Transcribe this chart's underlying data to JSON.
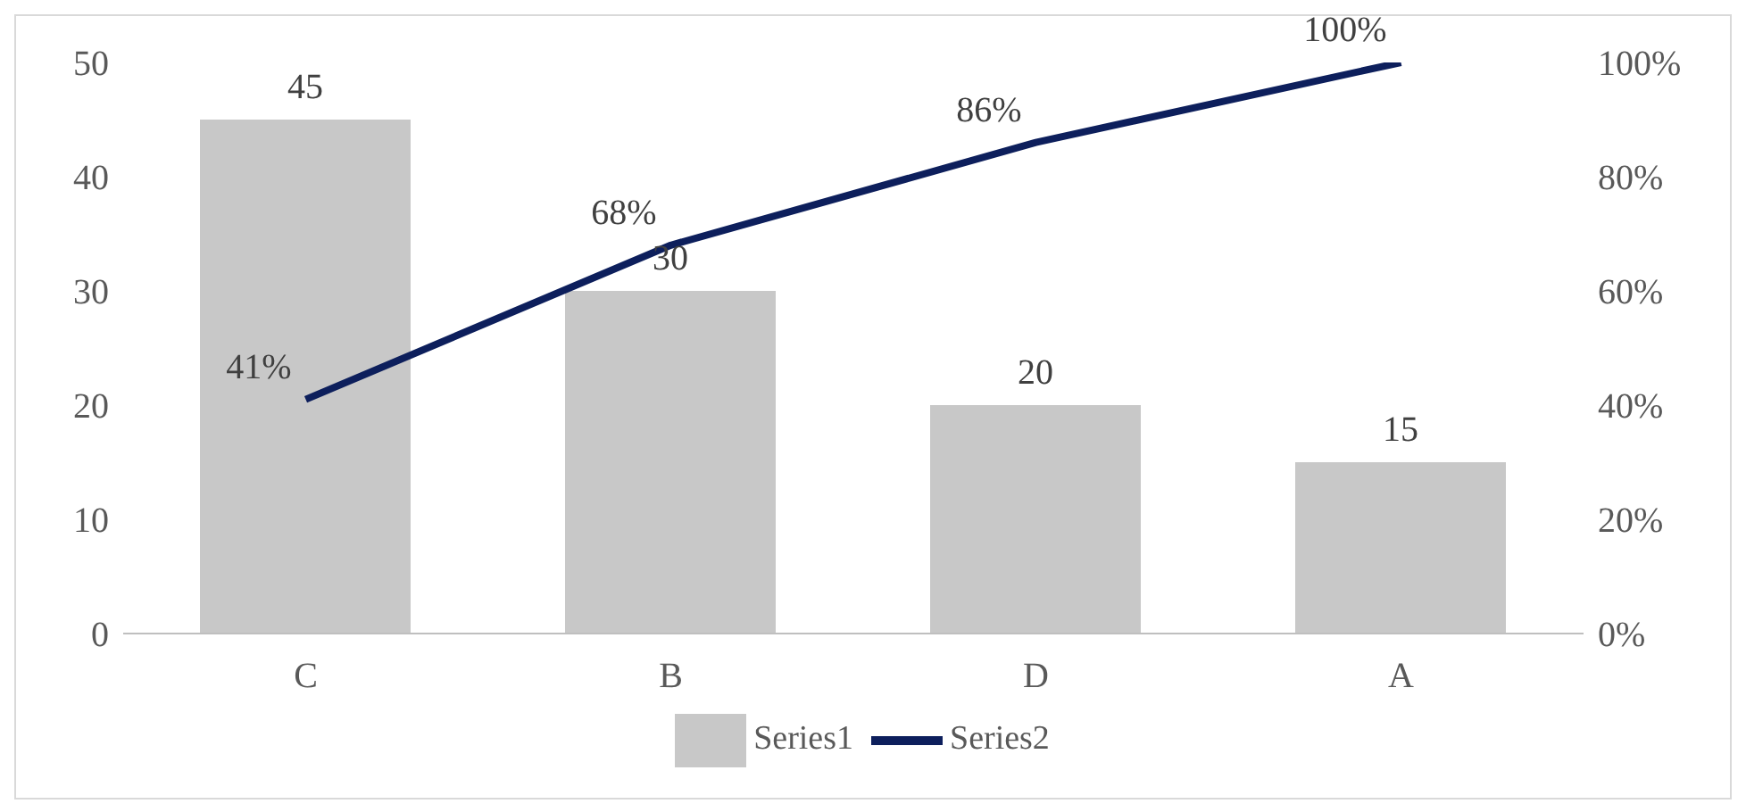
{
  "chart_data": {
    "type": "bar",
    "categories": [
      "C",
      "B",
      "D",
      "A"
    ],
    "series": [
      {
        "name": "Series1",
        "color": "#c8c8c8",
        "values": [
          45,
          30,
          20,
          15
        ],
        "value_labels": [
          "45",
          "30",
          "20",
          "15"
        ]
      },
      {
        "name": "Series2",
        "type": "line",
        "axis": "y2",
        "color": "#0d1f5c",
        "values": [
          41,
          68,
          86,
          100
        ],
        "value_labels": [
          "41%",
          "68%",
          "86%",
          "100%"
        ]
      }
    ],
    "ylim": [
      0,
      50
    ],
    "yticks": [
      0,
      10,
      20,
      30,
      40,
      50
    ],
    "y2lim": [
      0,
      100
    ],
    "y2ticks": [
      {
        "value": 0,
        "label": "0%"
      },
      {
        "value": 20,
        "label": "20%"
      },
      {
        "value": 40,
        "label": "40%"
      },
      {
        "value": 60,
        "label": "60%"
      },
      {
        "value": 80,
        "label": "80%"
      },
      {
        "value": 100,
        "label": "100%"
      }
    ],
    "grid": false,
    "legend": "bottom",
    "marker": "none",
    "line_style": "solid"
  }
}
